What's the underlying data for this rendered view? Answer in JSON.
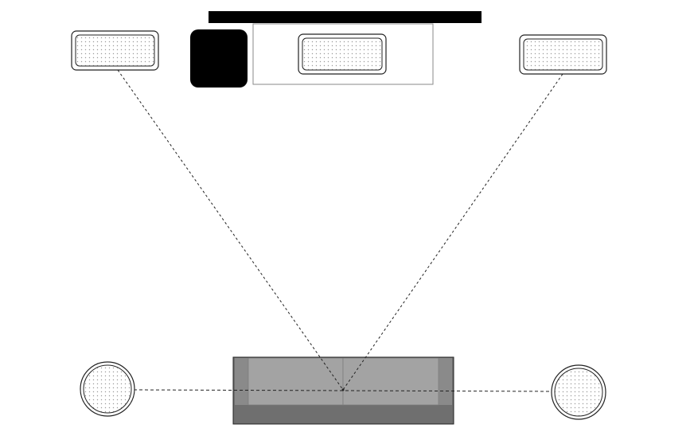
{
  "diagram": {
    "kind": "home-theater-speaker-layout",
    "colors": {
      "background": "#ffffff",
      "outline": "#222222",
      "tv_bar": "#000000",
      "subwoofer": "#000000",
      "speaker_fill": "#ffffff",
      "speaker_dots": "#9a9a9a",
      "sofa_base": "#6f6f6f",
      "sofa_seat": "#a3a3a3",
      "sofa_arm": "#8a8a8a",
      "cabinet_border": "#8a8a8a",
      "dashed_line": "#222222"
    },
    "elements": [
      {
        "name": "tv-screen",
        "icon": "tv-screen-icon"
      },
      {
        "name": "tv-cabinet",
        "icon": "cabinet-icon"
      },
      {
        "name": "subwoofer",
        "icon": "subwoofer-icon"
      },
      {
        "name": "front-left-speaker",
        "icon": "speaker-icon"
      },
      {
        "name": "center-speaker",
        "icon": "speaker-icon"
      },
      {
        "name": "front-right-speaker",
        "icon": "speaker-icon"
      },
      {
        "name": "surround-left-speaker",
        "icon": "round-speaker-icon"
      },
      {
        "name": "surround-right-speaker",
        "icon": "round-speaker-icon"
      },
      {
        "name": "sofa",
        "icon": "sofa-icon"
      },
      {
        "name": "listening-position",
        "icon": "point-icon"
      }
    ],
    "connections": [
      {
        "from": "front-left-speaker",
        "to": "listening-position",
        "style": "dashed"
      },
      {
        "from": "front-right-speaker",
        "to": "listening-position",
        "style": "dashed"
      },
      {
        "from": "surround-left-speaker",
        "to": "surround-right-speaker",
        "style": "dashed"
      }
    ]
  }
}
